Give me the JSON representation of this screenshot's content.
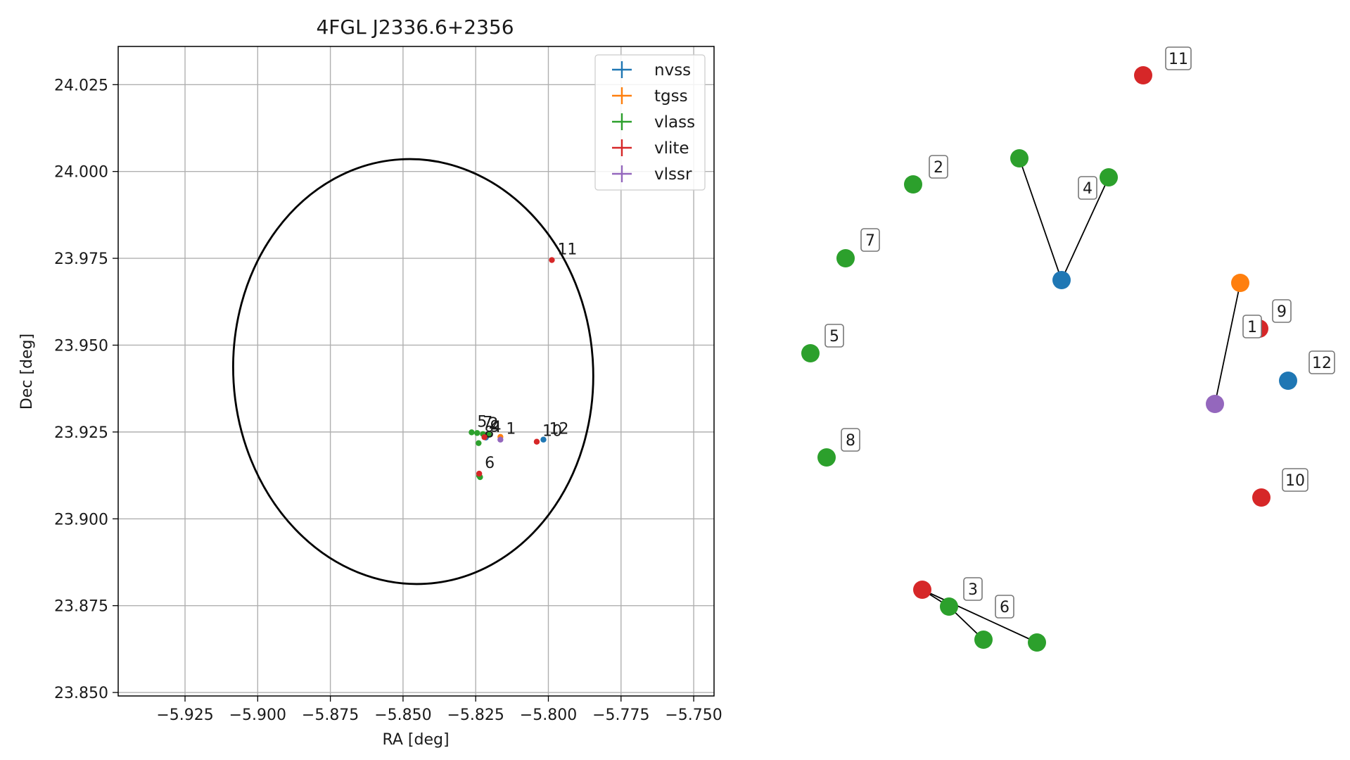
{
  "chart_data": [
    {
      "type": "scatter",
      "title": "4FGL J2336.6+2356",
      "xlabel": "RA [deg]",
      "ylabel": "Dec [deg]",
      "xlim": [
        -5.948,
        -5.743
      ],
      "ylim": [
        23.849,
        24.036
      ],
      "xticks": [
        -5.925,
        -5.9,
        -5.875,
        -5.85,
        -5.825,
        -5.8,
        -5.775,
        -5.75
      ],
      "xtick_labels": [
        "−5.925",
        "−5.900",
        "−5.875",
        "−5.850",
        "−5.825",
        "−5.800",
        "−5.775",
        "−5.750"
      ],
      "yticks": [
        23.85,
        23.875,
        23.9,
        23.925,
        23.95,
        23.975,
        24.0,
        24.025
      ],
      "ytick_labels": [
        "23.850",
        "23.875",
        "23.900",
        "23.925",
        "23.950",
        "23.975",
        "24.000",
        "24.025"
      ],
      "grid": true,
      "legend_position": "top-right",
      "ellipse": {
        "center_ra": -5.8465,
        "center_dec": 23.9424,
        "semi_ra": 0.0619,
        "semi_dec": 0.0612,
        "angle_deg": -3.5,
        "color": "#000000"
      },
      "series": [
        {
          "name": "nvss",
          "color": "#1f77b4",
          "points": [
            {
              "ra": -5.8215,
              "dec": 23.9234,
              "label": "4"
            },
            {
              "ra": -5.8017,
              "dec": 23.9228,
              "label": "12"
            }
          ]
        },
        {
          "name": "tgss",
          "color": "#ff7f0e",
          "points": [
            {
              "ra": -5.8165,
              "dec": 23.9236,
              "label": ""
            }
          ]
        },
        {
          "name": "vlass",
          "color": "#2ca02c",
          "points": [
            {
              "ra": -5.8264,
              "dec": 23.9249,
              "label": "5"
            },
            {
              "ra": -5.8245,
              "dec": 23.9247,
              "label": "7"
            },
            {
              "ra": -5.8225,
              "dec": 23.9244,
              "label": "2"
            },
            {
              "ra": -5.8205,
              "dec": 23.9242,
              "label": ""
            },
            {
              "ra": -5.824,
              "dec": 23.9218,
              "label": "8"
            },
            {
              "ra": -5.8235,
              "dec": 23.912,
              "label": ""
            },
            {
              "ra": -5.8238,
              "dec": 23.9124,
              "label": ""
            }
          ]
        },
        {
          "name": "vlite",
          "color": "#d62728",
          "points": [
            {
              "ra": -5.7988,
              "dec": 23.9745,
              "label": "11"
            },
            {
              "ra": -5.822,
              "dec": 23.9235,
              "label": "9"
            },
            {
              "ra": -5.804,
              "dec": 23.9222,
              "label": "10"
            },
            {
              "ra": -5.8238,
              "dec": 23.913,
              "label": "6"
            }
          ]
        },
        {
          "name": "vlssr",
          "color": "#9467bd",
          "points": [
            {
              "ra": -5.8165,
              "dec": 23.9228,
              "label": "1"
            }
          ]
        }
      ]
    },
    {
      "type": "graph",
      "nodes": [
        {
          "id": "n11",
          "label": "11",
          "color": "#d62728"
        },
        {
          "id": "n2",
          "label": "2",
          "color": "#2ca02c"
        },
        {
          "id": "n4a",
          "label": "",
          "color": "#2ca02c"
        },
        {
          "id": "n4b",
          "label": "",
          "color": "#2ca02c"
        },
        {
          "id": "n4c",
          "label": "4",
          "color": "#1f77b4"
        },
        {
          "id": "n7",
          "label": "7",
          "color": "#2ca02c"
        },
        {
          "id": "n1a",
          "label": "",
          "color": "#ff7f0e"
        },
        {
          "id": "n9",
          "label": "9",
          "color": "#d62728"
        },
        {
          "id": "n1c",
          "label": "1",
          "color": "#9467bd"
        },
        {
          "id": "n5",
          "label": "5",
          "color": "#2ca02c"
        },
        {
          "id": "n12",
          "label": "12",
          "color": "#1f77b4"
        },
        {
          "id": "n8",
          "label": "8",
          "color": "#2ca02c"
        },
        {
          "id": "n10",
          "label": "10",
          "color": "#d62728"
        },
        {
          "id": "n3r",
          "label": "",
          "color": "#d62728"
        },
        {
          "id": "n3",
          "label": "3",
          "color": "#2ca02c"
        },
        {
          "id": "n3c",
          "label": "",
          "color": "#2ca02c"
        },
        {
          "id": "n6",
          "label": "6",
          "color": "#2ca02c"
        }
      ],
      "edges": [
        [
          "n4a",
          "n4c"
        ],
        [
          "n4b",
          "n4c"
        ],
        [
          "n1a",
          "n1c"
        ],
        [
          "n3r",
          "n3"
        ],
        [
          "n3",
          "n3c"
        ],
        [
          "n3r",
          "n6"
        ]
      ]
    }
  ]
}
